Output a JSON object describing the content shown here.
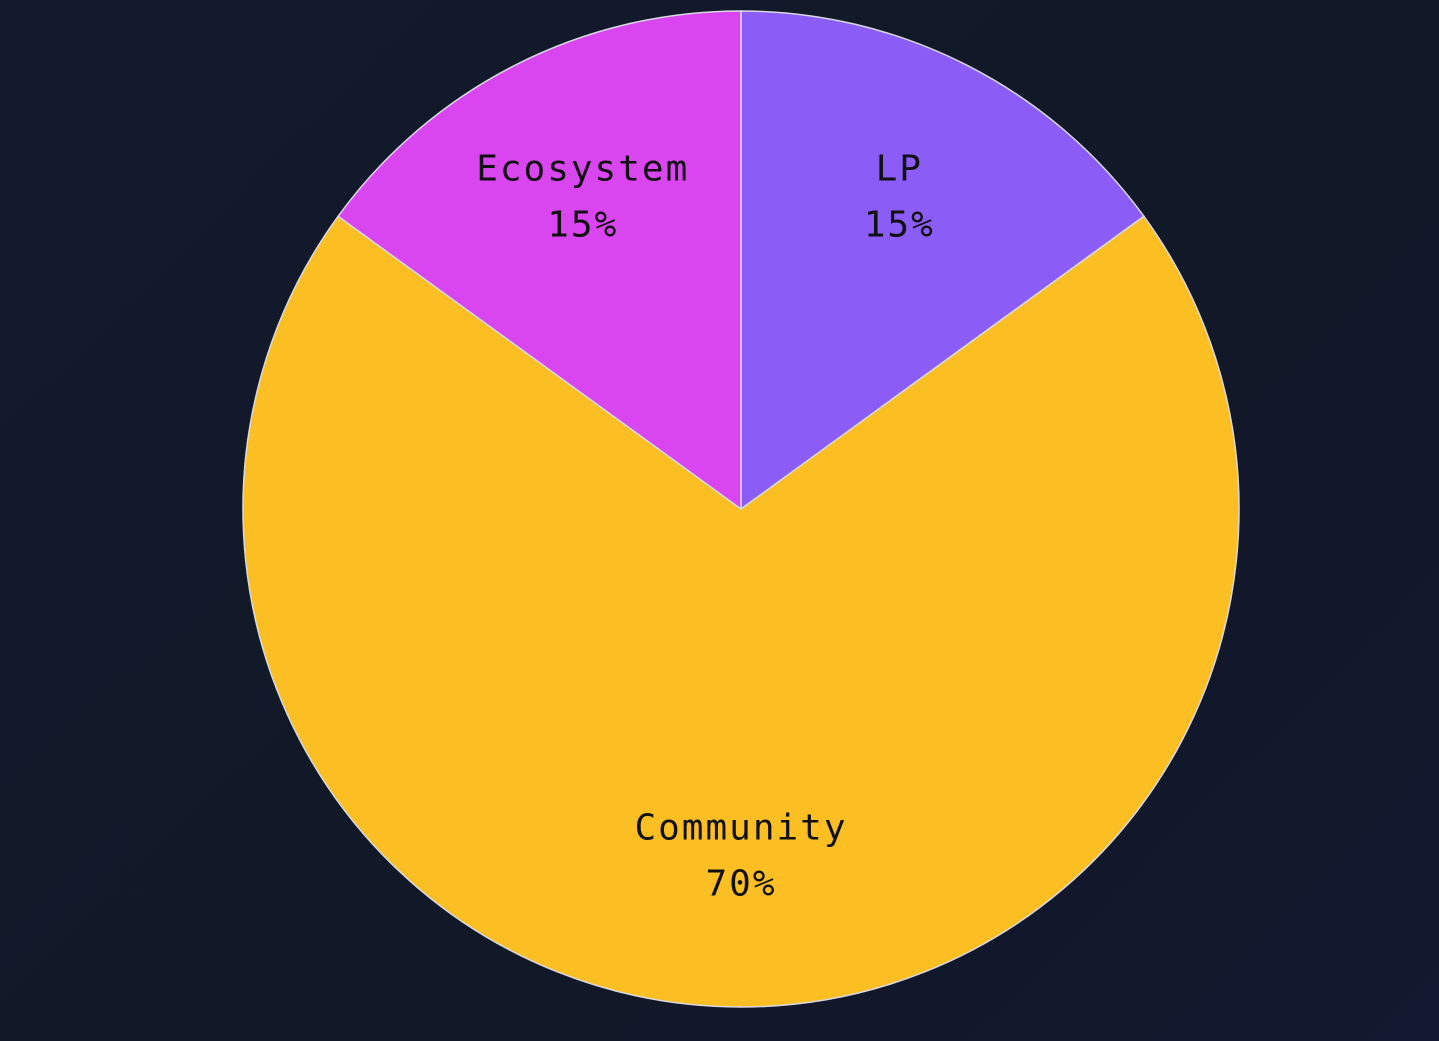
{
  "chart_data": {
    "type": "pie",
    "categories": [
      "LP",
      "Community",
      "Ecosystem"
    ],
    "values": [
      15,
      70,
      15
    ],
    "value_labels": [
      "15%",
      "70%",
      "15%"
    ],
    "colors": [
      "#8b5cf6",
      "#fbbf24",
      "#d946ef"
    ]
  }
}
